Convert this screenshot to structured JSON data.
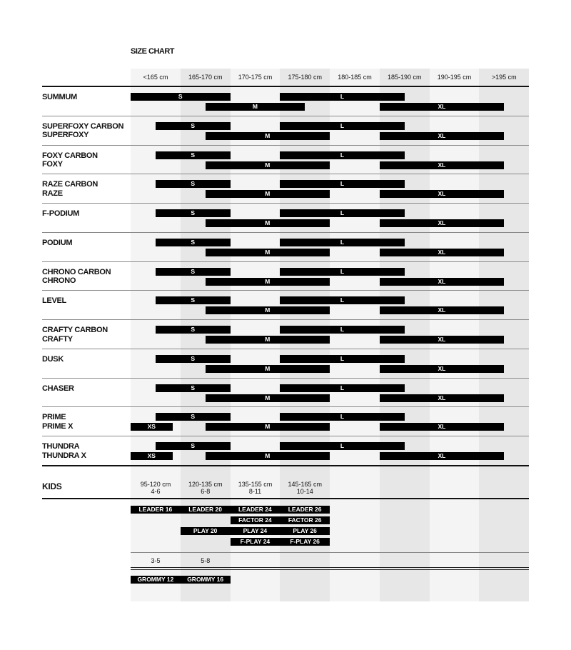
{
  "title": "SIZE CHART",
  "colors": {
    "col_light": "#f4f4f4",
    "col_dark": "#e7e7e7",
    "bar": "#000000"
  },
  "columns": [
    "<165 cm",
    "165-170 cm",
    "170-175 cm",
    "175-180 cm",
    "180-185 cm",
    "185-190 cm",
    "190-195 cm",
    ">195 cm"
  ],
  "models": [
    {
      "names": [
        "SUMMUM"
      ],
      "bars": [
        {
          "size": "S",
          "from_cm": 160,
          "to_cm": 170
        },
        {
          "size": "L",
          "from_cm": 175,
          "to_cm": 187.5
        },
        {
          "size": "M",
          "from_cm": 167.5,
          "to_cm": 177.5
        },
        {
          "size": "XL",
          "from_cm": 185,
          "to_cm": 197.5
        }
      ]
    },
    {
      "names": [
        "SUPERFOXY CARBON",
        "SUPERFOXY"
      ],
      "preset": "standard"
    },
    {
      "names": [
        "FOXY CARBON",
        "FOXY"
      ],
      "preset": "standard"
    },
    {
      "names": [
        "RAZE CARBON",
        "RAZE"
      ],
      "preset": "standard"
    },
    {
      "names": [
        "F-PODIUM"
      ],
      "preset": "standard"
    },
    {
      "names": [
        "PODIUM"
      ],
      "preset": "standard"
    },
    {
      "names": [
        "CHRONO CARBON",
        "CHRONO"
      ],
      "preset": "standard"
    },
    {
      "names": [
        "LEVEL"
      ],
      "preset": "standard"
    },
    {
      "names": [
        "CRAFTY CARBON",
        "CRAFTY"
      ],
      "preset": "standard"
    },
    {
      "names": [
        "DUSK"
      ],
      "preset": "standard"
    },
    {
      "names": [
        "CHASER"
      ],
      "preset": "standard"
    },
    {
      "names": [
        "PRIME",
        "PRIME X"
      ],
      "preset": "standard_xs"
    },
    {
      "names": [
        "THUNDRA",
        "THUNDRA X"
      ],
      "preset": "standard_xs"
    }
  ],
  "presets": {
    "standard": [
      {
        "size": "S",
        "from_cm": 162.5,
        "to_cm": 170
      },
      {
        "size": "L",
        "from_cm": 175,
        "to_cm": 187.5
      },
      {
        "size": "M",
        "from_cm": 167.5,
        "to_cm": 180
      },
      {
        "size": "XL",
        "from_cm": 185,
        "to_cm": 197.5
      }
    ],
    "standard_xs": [
      {
        "size": "S",
        "from_cm": 162.5,
        "to_cm": 170
      },
      {
        "size": "L",
        "from_cm": 175,
        "to_cm": 187.5
      },
      {
        "size": "XS",
        "from_cm": 160,
        "to_cm": 164.2
      },
      {
        "size": "M",
        "from_cm": 167.5,
        "to_cm": 180
      },
      {
        "size": "XL",
        "from_cm": 185,
        "to_cm": 197.5
      }
    ]
  },
  "kids": {
    "label": "KIDS",
    "columns": [
      [
        "95-120 cm",
        "4-6"
      ],
      [
        "120-135 cm",
        "6-8"
      ],
      [
        "135-155 cm",
        "8-11"
      ],
      [
        "145-165 cm",
        "10-14"
      ]
    ],
    "rows": [
      [
        "LEADER 16",
        "LEADER 20",
        "LEADER 24",
        "LEADER 26"
      ],
      [
        "",
        "",
        "FACTOR 24",
        "FACTOR 26"
      ],
      [
        "",
        "PLAY 20",
        "PLAY 24",
        "PLAY 26"
      ],
      [
        "",
        "",
        "F-PLAY 24",
        "F-PLAY 26"
      ]
    ],
    "small_columns": [
      "3-5",
      "5-8"
    ],
    "small_rows": [
      [
        "GROMMY 12",
        "GROMMY 16"
      ]
    ]
  }
}
